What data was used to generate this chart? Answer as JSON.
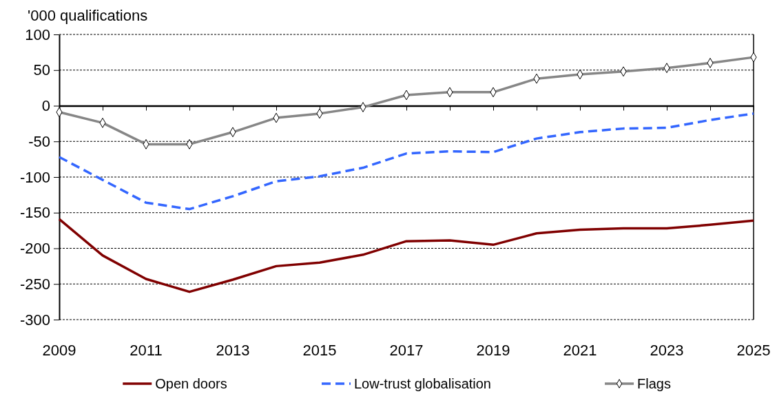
{
  "chart_data": {
    "type": "line",
    "ylabel": "'000 qualifications",
    "x": [
      2009,
      2010,
      2011,
      2012,
      2013,
      2014,
      2015,
      2016,
      2017,
      2018,
      2019,
      2020,
      2021,
      2022,
      2023,
      2024,
      2025
    ],
    "xlim": [
      2009,
      2025
    ],
    "xticks": [
      2009,
      {
        "value": 2010,
        "label": null
      },
      2011,
      {
        "value": 2012,
        "label": null
      },
      2013,
      {
        "value": 2014,
        "label": null
      },
      2015,
      {
        "value": 2016,
        "label": null
      },
      2017,
      {
        "value": 2018,
        "label": null
      },
      2019,
      {
        "value": 2020,
        "label": null
      },
      2021,
      {
        "value": 2022,
        "label": null
      },
      2023,
      {
        "value": 2024,
        "label": null
      },
      2025
    ],
    "ylim": [
      -300,
      100
    ],
    "yticks": [
      -300,
      -250,
      -200,
      -150,
      -100,
      -50,
      0,
      50,
      100
    ],
    "grid": "y",
    "legend": "bottom",
    "series": [
      {
        "name": "Open doors",
        "color": "#800000",
        "values": [
          -159,
          -210,
          -243,
          -261,
          -244,
          -225,
          -220,
          -209,
          -190,
          -189,
          -195,
          -179,
          -174,
          -172,
          -172,
          -167,
          -161
        ]
      },
      {
        "name": "Low-trust globalisation",
        "color": "#3366ff",
        "line_style": "dashed",
        "values": [
          -72,
          -104,
          -136,
          -145,
          -127,
          -106,
          -99,
          -87,
          -67,
          -64,
          -65,
          -46,
          -37,
          -32,
          -31,
          -20,
          -11
        ]
      },
      {
        "name": "Flags",
        "color": "#868686",
        "marker": "diamond",
        "values": [
          -9,
          -24,
          -54,
          -54,
          -37,
          -17,
          -11,
          -2,
          15,
          19,
          19,
          38,
          44,
          48,
          53,
          60,
          68
        ]
      }
    ]
  }
}
